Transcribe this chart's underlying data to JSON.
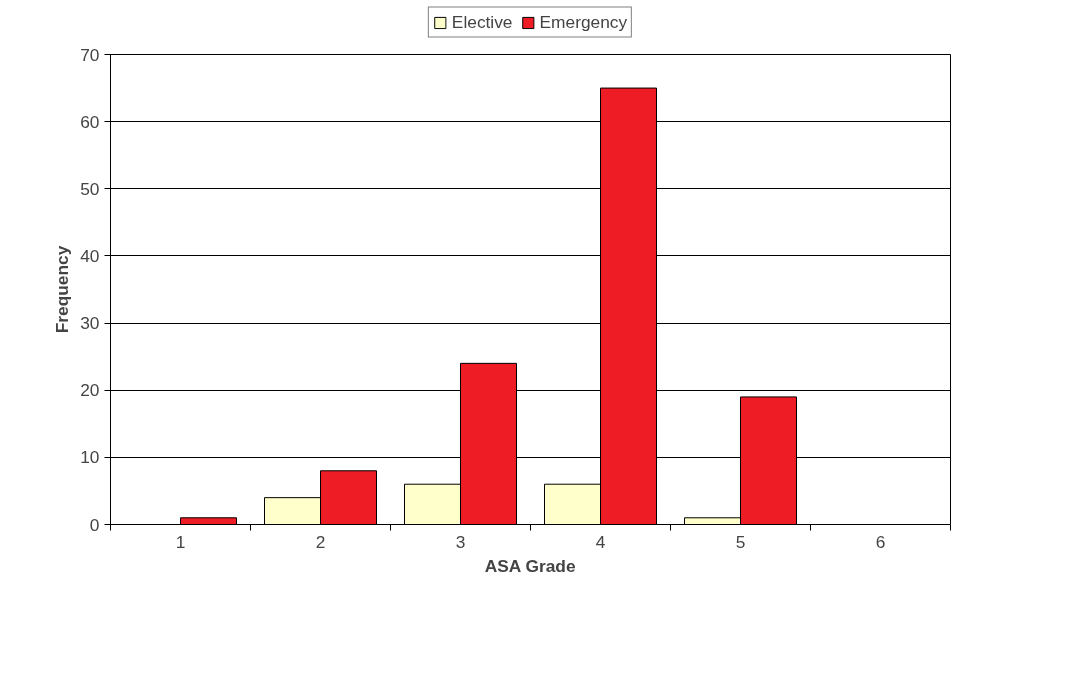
{
  "chart_data": {
    "type": "bar",
    "xlabel": "ASA Grade",
    "ylabel": "Frequency",
    "categories": [
      "1",
      "2",
      "3",
      "4",
      "5",
      "6"
    ],
    "series": [
      {
        "name": "Elective",
        "color": "#ffffcc",
        "values": [
          0,
          4,
          6,
          6,
          1,
          0
        ]
      },
      {
        "name": "Emergency",
        "color": "#ee1c24",
        "values": [
          1,
          8,
          24,
          65,
          19,
          0
        ]
      }
    ],
    "ylim": [
      0,
      70
    ],
    "yticks": [
      0,
      10,
      20,
      30,
      40,
      50,
      60,
      70
    ],
    "grid": "y",
    "legend": "top"
  }
}
